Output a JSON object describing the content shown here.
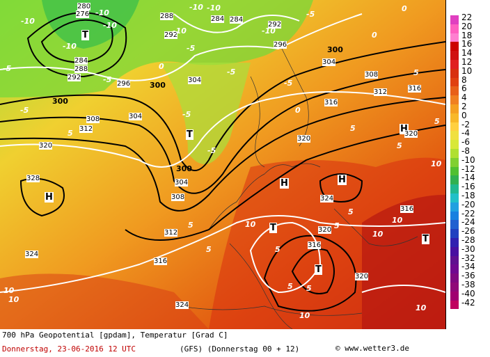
{
  "map": {
    "contour_labels_geopotential": [
      "276",
      "280",
      "284",
      "288",
      "292",
      "292",
      "288",
      "284",
      "284",
      "292",
      "296",
      "296",
      "300",
      "300",
      "300",
      "300",
      "304",
      "304",
      "304",
      "304",
      "308",
      "308",
      "308",
      "312",
      "312",
      "312",
      "316",
      "316",
      "316",
      "316",
      "316",
      "320",
      "320",
      "320",
      "320",
      "320",
      "324",
      "324",
      "324",
      "328"
    ],
    "contour_labels_temperature": [
      "-10",
      "-10",
      "-10",
      "-10",
      "-10",
      "-10",
      "-10",
      "-10",
      "-5",
      "-5",
      "-5",
      "-5",
      "-5",
      "-5",
      "-5",
      "-5",
      "-5",
      "0",
      "0",
      "0",
      "0",
      "5",
      "5",
      "5",
      "5",
      "5",
      "5",
      "5",
      "5",
      "5",
      "5",
      "5",
      "5",
      "10",
      "10",
      "10",
      "10",
      "10",
      "10",
      "10",
      "10"
    ],
    "pressure_centers": [
      "H",
      "H",
      "H",
      "H",
      "T",
      "T",
      "T",
      "T",
      "T"
    ]
  },
  "legend": {
    "values": [
      "22",
      "20",
      "18",
      "16",
      "14",
      "12",
      "10",
      "8",
      "6",
      "4",
      "2",
      "0",
      "-2",
      "-4",
      "-6",
      "-8",
      "-10",
      "-12",
      "-14",
      "-16",
      "-18",
      "-20",
      "-22",
      "-24",
      "-26",
      "-28",
      "-30",
      "-32",
      "-34",
      "-36",
      "-38",
      "-40",
      "-42"
    ],
    "colors": [
      "#e040c0",
      "#ff60c0",
      "#ff80d0",
      "#cc0000",
      "#d01010",
      "#e02020",
      "#d83010",
      "#e04010",
      "#e86018",
      "#f08020",
      "#f5a020",
      "#f8b828",
      "#ffd040",
      "#f0e040",
      "#d8e838",
      "#b0e030",
      "#80d030",
      "#50c030",
      "#30b050",
      "#20b890",
      "#20c0c8",
      "#20a0e0",
      "#1880e0",
      "#2060d0",
      "#2040c0",
      "#3020b0",
      "#4810a0",
      "#601090",
      "#700890",
      "#800880",
      "#900878",
      "#a00070",
      "#c00060"
    ]
  },
  "footer": {
    "line1": "700 hPa Geopotential [gpdam], Temperatur [Grad C]",
    "line2": "Donnerstag, 23-06-2016  12 UTC",
    "line3": "(GFS)  (Donnerstag 00 + 12)",
    "copyright": "© www.wetter3.de"
  }
}
